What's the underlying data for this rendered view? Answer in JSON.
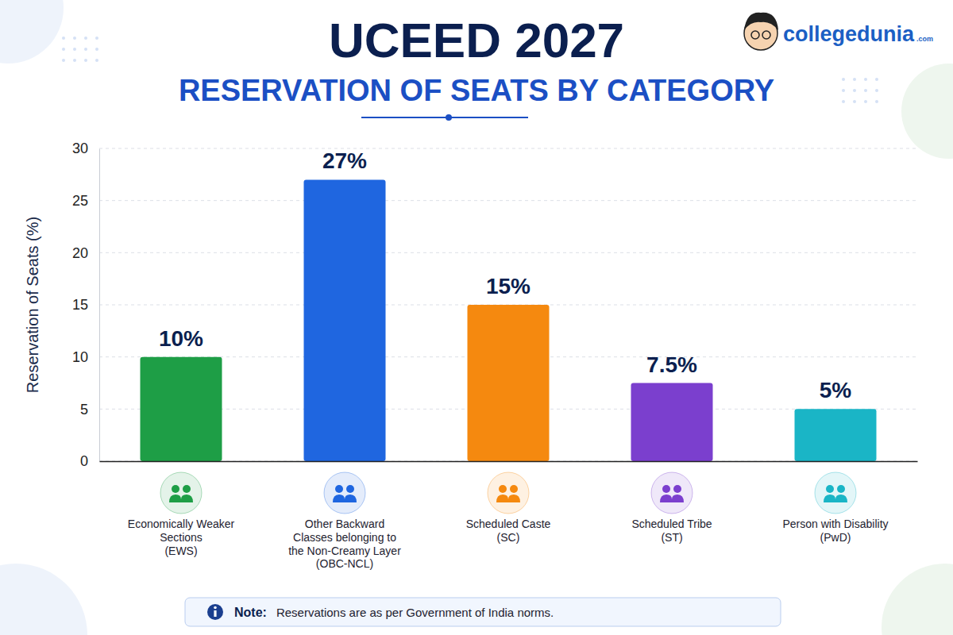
{
  "chart_data": {
    "type": "bar",
    "title": "UCEED 2027",
    "subtitle": "RESERVATION OF SEATS BY CATEGORY",
    "y_label": "Reservation of Seats (%)",
    "categories": [
      "Economically Weaker Sections (EWS)",
      "Other Backward Classes belonging to the Non-Creamy Layer (OBC-NCL)",
      "Scheduled Caste (SC)",
      "Scheduled Tribe (ST)",
      "Person with Disability (PwD)"
    ],
    "values": [
      10,
      27,
      15,
      7.5,
      5
    ],
    "value_labels": [
      "10%",
      "27%",
      "15%",
      "7.5%",
      "5%"
    ],
    "colors": [
      "#1e9e46",
      "#1f66e0",
      "#f5890f",
      "#7b3fce",
      "#1ab5c6"
    ],
    "ylim": [
      0,
      30
    ],
    "yticks": [
      0,
      5,
      10,
      15,
      20,
      25,
      30
    ],
    "grid": true,
    "data_labels": true,
    "annotations": [
      {
        "label": "Note:",
        "text": "Reservations are as per Government of India norms."
      }
    ]
  },
  "brand": {
    "name": "collegedunia",
    "suffix": ".com"
  }
}
